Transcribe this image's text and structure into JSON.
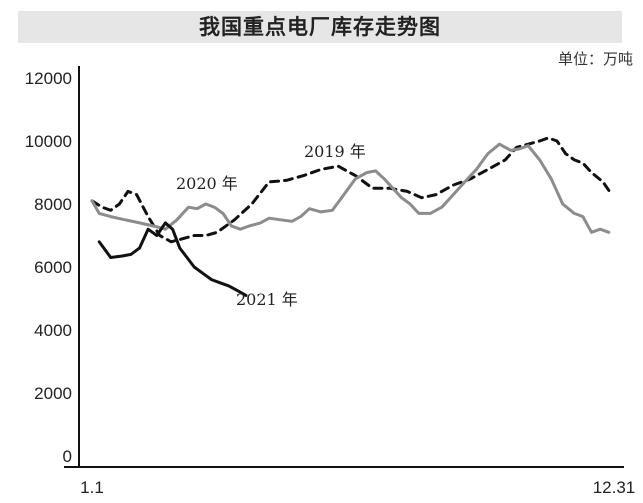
{
  "title": "我国重点电厂库存走势图",
  "unit": "单位：万吨",
  "chart_data": {
    "type": "line",
    "title": "我国重点电厂库存走势图",
    "unit": "单位：万吨",
    "xlabel": "",
    "ylabel": "",
    "x_tick_labels": [
      "1.1",
      "12.31"
    ],
    "yticks": [
      0,
      2000,
      4000,
      6000,
      8000,
      10000,
      12000
    ],
    "ylim": [
      0,
      12000
    ],
    "xlim": [
      1,
      365
    ],
    "grid": false,
    "legend": "inline labels",
    "series": [
      {
        "name": "2019 年",
        "style": "dashed",
        "color": "#111111",
        "x": [
          1,
          8,
          14,
          20,
          26,
          32,
          40,
          48,
          56,
          64,
          72,
          80,
          88,
          100,
          112,
          124,
          136,
          148,
          160,
          172,
          184,
          196,
          208,
          220,
          230,
          240,
          252,
          264,
          276,
          288,
          296,
          304,
          312,
          318,
          324,
          330,
          336,
          342,
          348,
          356,
          362
        ],
        "y": [
          8100,
          7900,
          7800,
          8000,
          8400,
          8300,
          7600,
          7000,
          6800,
          6900,
          7000,
          7000,
          7100,
          7500,
          8000,
          8700,
          8750,
          8900,
          9100,
          9200,
          8900,
          8500,
          8500,
          8400,
          8200,
          8300,
          8600,
          8800,
          9100,
          9400,
          9800,
          9900,
          10000,
          10100,
          10000,
          9600,
          9400,
          9300,
          9000,
          8700,
          8300
        ]
      },
      {
        "name": "2020 年",
        "style": "solid",
        "color": "#8c8c8c",
        "x": [
          1,
          6,
          14,
          24,
          34,
          44,
          52,
          60,
          68,
          74,
          80,
          86,
          92,
          98,
          104,
          110,
          118,
          124,
          132,
          140,
          146,
          152,
          160,
          168,
          176,
          184,
          192,
          198,
          204,
          210,
          216,
          222,
          228,
          236,
          244,
          252,
          260,
          268,
          276,
          284,
          292,
          298,
          304,
          312,
          320,
          328,
          336,
          342,
          348,
          354,
          360
        ],
        "y": [
          8100,
          7700,
          7600,
          7500,
          7400,
          7300,
          7200,
          7500,
          7900,
          7850,
          8000,
          7900,
          7700,
          7300,
          7200,
          7300,
          7400,
          7550,
          7500,
          7450,
          7600,
          7850,
          7750,
          7800,
          8300,
          8800,
          9000,
          9050,
          8800,
          8500,
          8200,
          8000,
          7700,
          7700,
          7900,
          8300,
          8700,
          9100,
          9600,
          9900,
          9700,
          9750,
          9850,
          9400,
          8800,
          8000,
          7700,
          7600,
          7100,
          7200,
          7100
        ]
      },
      {
        "name": "2021 年",
        "style": "solid",
        "color": "#111111",
        "x": [
          6,
          14,
          22,
          28,
          34,
          40,
          46,
          52,
          57,
          62,
          67,
          72,
          78,
          84,
          90,
          96,
          102,
          108
        ],
        "y": [
          6800,
          6300,
          6350,
          6400,
          6600,
          7200,
          7000,
          7400,
          7200,
          6600,
          6300,
          6000,
          5800,
          5600,
          5500,
          5400,
          5250,
          5100
        ]
      }
    ]
  }
}
